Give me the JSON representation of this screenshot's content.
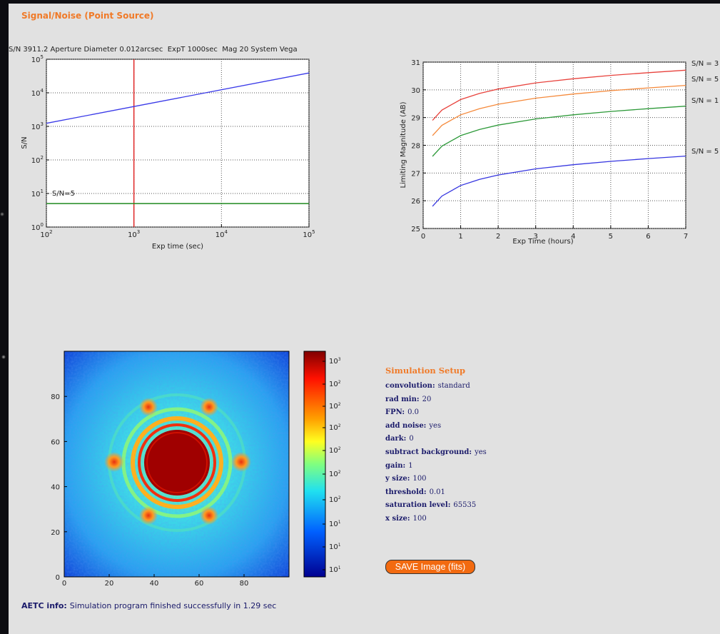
{
  "header": {
    "title": "Signal/Noise (Point Source)"
  },
  "chart_data": [
    {
      "type": "line",
      "title": "S/N 3911.2 Aperture Diameter 0.012arcsec  ExpT 1000sec  Mag 20 System Vega",
      "x_label": "Exp time (sec)",
      "y_label": "S/N",
      "log_x": true,
      "log_y": true,
      "xlim": [
        100,
        100000
      ],
      "ylim": [
        1,
        100000
      ],
      "xticks": [
        {
          "value": 100,
          "label": "10",
          "exponent": "2"
        },
        {
          "value": 1000,
          "label": "10",
          "exponent": "3"
        },
        {
          "value": 10000,
          "label": "10",
          "exponent": "4"
        },
        {
          "value": 100000,
          "label": "10",
          "exponent": "5"
        }
      ],
      "yticks": [
        {
          "value": 1,
          "label": "10",
          "exponent": "0"
        },
        {
          "value": 10,
          "label": "10",
          "exponent": "1"
        },
        {
          "value": 100,
          "label": "10",
          "exponent": "2"
        },
        {
          "value": 1000,
          "label": "10",
          "exponent": "3"
        },
        {
          "value": 10000,
          "label": "10",
          "exponent": "4"
        },
        {
          "value": 100000,
          "label": "10",
          "exponent": "5"
        }
      ],
      "grid": true,
      "x": [
        100,
        1000,
        100000
      ],
      "series": [
        {
          "color": "#3a3ae8",
          "values": [
            1237,
            3911.2,
            39110
          ]
        }
      ],
      "vline": {
        "x": 1000,
        "color": "#e02828"
      },
      "hline": {
        "y": 5,
        "label": "S/N=5",
        "color": "#1f8a1f"
      }
    },
    {
      "type": "line",
      "x_label": "Exp Time (hours)",
      "y_label": "Limiting Magnitude (AB)",
      "xlim": [
        0,
        7
      ],
      "ylim": [
        25,
        31
      ],
      "xticks": [
        0,
        1,
        2,
        3,
        4,
        5,
        6,
        7
      ],
      "yticks": [
        25,
        26,
        27,
        28,
        29,
        30,
        31
      ],
      "grid": true,
      "x": [
        0.25,
        0.5,
        1,
        1.5,
        2,
        3,
        4,
        5,
        6,
        7
      ],
      "series": [
        {
          "name": "S/N = 3",
          "color": "#e8423c",
          "values": [
            28.9,
            29.27,
            29.65,
            29.87,
            30.03,
            30.25,
            30.4,
            30.52,
            30.62,
            30.71
          ]
        },
        {
          "name": "S/N = 5",
          "color": "#f5893a",
          "values": [
            28.35,
            28.72,
            29.1,
            29.32,
            29.48,
            29.7,
            29.85,
            29.97,
            30.07,
            30.16
          ]
        },
        {
          "name": "S/N = 1",
          "color": "#2e9a3a",
          "values": [
            27.6,
            27.97,
            28.35,
            28.57,
            28.73,
            28.95,
            29.1,
            29.22,
            29.32,
            29.41
          ]
        },
        {
          "name": "S/N = 5",
          "color": "#3636e0",
          "values": [
            25.8,
            26.17,
            26.55,
            26.77,
            26.93,
            27.15,
            27.3,
            27.42,
            27.52,
            27.61
          ]
        }
      ]
    }
  ],
  "image": {
    "xticks": [
      0,
      20,
      40,
      60,
      80
    ],
    "yticks": [
      0,
      20,
      40,
      60,
      80
    ],
    "colorbar_ticks": [
      {
        "label": "10",
        "exponent": "3"
      },
      {
        "label": "10",
        "exponent": "2"
      },
      {
        "label": "10",
        "exponent": "2"
      },
      {
        "label": "10",
        "exponent": "2"
      },
      {
        "label": "10",
        "exponent": "2"
      },
      {
        "label": "10",
        "exponent": "2"
      },
      {
        "label": "10",
        "exponent": "2"
      },
      {
        "label": "10",
        "exponent": "1"
      },
      {
        "label": "10",
        "exponent": "1"
      },
      {
        "label": "10",
        "exponent": "1"
      }
    ]
  },
  "simulation_setup": {
    "title": "Simulation Setup",
    "items": [
      {
        "key": "convolution:",
        "value": "standard"
      },
      {
        "key": "rad min:",
        "value": "20"
      },
      {
        "key": "FPN:",
        "value": "0.0"
      },
      {
        "key": "add noise:",
        "value": "yes"
      },
      {
        "key": "dark:",
        "value": "0"
      },
      {
        "key": "subtract background:",
        "value": "yes"
      },
      {
        "key": "gain:",
        "value": "1"
      },
      {
        "key": "y size:",
        "value": "100"
      },
      {
        "key": "threshold:",
        "value": "0.01"
      },
      {
        "key": "saturation level:",
        "value": "65535"
      },
      {
        "key": "x size:",
        "value": "100"
      }
    ]
  },
  "button": {
    "label": "SAVE Image (fits)"
  },
  "footer": {
    "key": "AETC info:",
    "text": "Simulation program finished successfully in 1.29 sec"
  }
}
